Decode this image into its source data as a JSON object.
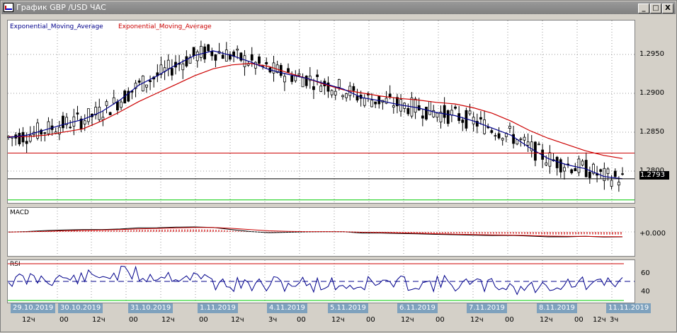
{
  "window": {
    "title": "График GBP /USD  ЧАС",
    "btn_min": "_",
    "btn_max": "□",
    "btn_close": "X"
  },
  "colors": {
    "ema_fast": "#00008b",
    "ema_slow": "#cc0000",
    "candles": "#000000",
    "resistance": "#cc0000",
    "support": "#00cc00",
    "macd_hist": "#cc0000",
    "rsi_line": "#00008b",
    "date_bg": "#7ea1bd"
  },
  "main_panel": {
    "legend_fast": "Exponential_Moving_Average",
    "legend_slow": "Exponential_Moving_Average",
    "y_ticks": [
      "1.2950",
      "1.2900",
      "1.2850",
      "1.2800"
    ],
    "current_price": "1.2793"
  },
  "macd_panel": {
    "title": "MACD",
    "zero_label": "+0.000"
  },
  "rsi_panel": {
    "title": "RSI",
    "tick_60": "60",
    "tick_40": "40"
  },
  "x_axis": {
    "dates": [
      "29.10.2019",
      "30.10.2019",
      "31.10.2019",
      "1.11.2019",
      "4.11.2019",
      "5.11.2019",
      "6.11.2019",
      "7.11.2019",
      "8.11.2019",
      "11.11.2019"
    ],
    "hours": [
      "12ч",
      "00",
      "12ч",
      "00",
      "12ч",
      "00",
      "12ч",
      "3ч",
      "00",
      "12ч",
      "00",
      "12ч",
      "00",
      "12ч",
      "00",
      "12ч",
      "00",
      "12ч",
      "3ч"
    ]
  },
  "chart_data": {
    "type": "line",
    "title": "GBP /USD",
    "series": [
      {
        "name": "Exponential_Moving_Average",
        "role": "fast",
        "values": [
          1.2849,
          1.2852,
          1.2859,
          1.2866,
          1.2872,
          1.2882,
          1.2897,
          1.2916,
          1.2928,
          1.2942,
          1.2954,
          1.296,
          1.2954,
          1.2946,
          1.2936,
          1.293,
          1.2925,
          1.2918,
          1.2911,
          1.29,
          1.2896,
          1.2891,
          1.2887,
          1.2881,
          1.2877,
          1.287,
          1.2861,
          1.2852,
          1.2836,
          1.2822,
          1.2814,
          1.2809,
          1.2799,
          1.2796
        ]
      },
      {
        "name": "Exponential_Moving_Average",
        "role": "slow",
        "values": [
          1.285,
          1.285,
          1.2852,
          1.2856,
          1.286,
          1.287,
          1.2882,
          1.2895,
          1.2906,
          1.2917,
          1.2928,
          1.2937,
          1.2942,
          1.2944,
          1.294,
          1.2932,
          1.2925,
          1.2917,
          1.291,
          1.2906,
          1.2902,
          1.2899,
          1.2897,
          1.2894,
          1.2892,
          1.2887,
          1.288,
          1.287,
          1.2858,
          1.2848,
          1.284,
          1.2832,
          1.2826,
          1.2822
        ]
      }
    ],
    "price_levels": [
      1.2829,
      1.2796,
      1.2769
    ],
    "ylim": [
      1.2766,
      1.2998
    ]
  }
}
